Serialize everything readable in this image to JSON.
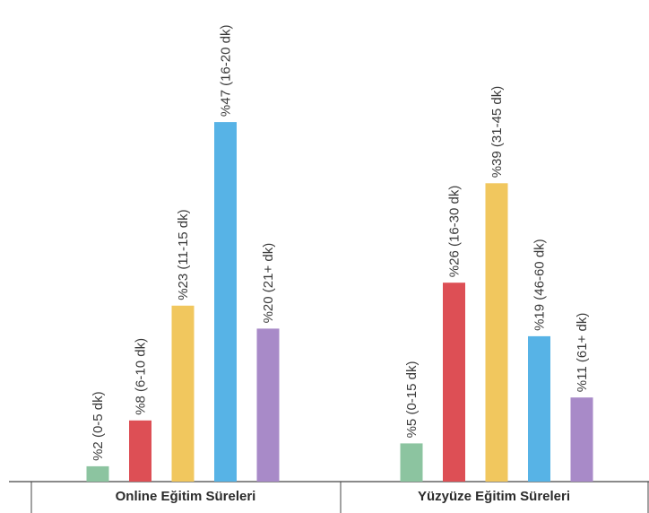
{
  "chart_data": {
    "type": "bar",
    "title": "",
    "xlabel": "",
    "ylabel": "",
    "ylim": [
      0,
      50
    ],
    "groups": [
      {
        "label": "Online Eğitim Süreleri",
        "bars": [
          {
            "label": "%2 (0-5 dk)",
            "value": 2,
            "color": "#8cc4a0"
          },
          {
            "label": "%8 (6-10 dk)",
            "value": 8,
            "color": "#dd4f55"
          },
          {
            "label": "%23 (11-15 dk)",
            "value": 23,
            "color": "#f1c75e"
          },
          {
            "label": "%47 (16-20 dk)",
            "value": 47,
            "color": "#57b3e6"
          },
          {
            "label": "%20 (21+ dk)",
            "value": 20,
            "color": "#a88ac8"
          }
        ]
      },
      {
        "label": "Yüzyüze Eğitim Süreleri",
        "bars": [
          {
            "label": "%5 (0-15 dk)",
            "value": 5,
            "color": "#8cc4a0"
          },
          {
            "label": "%26 (16-30 dk)",
            "value": 26,
            "color": "#dd4f55"
          },
          {
            "label": "%39 (31-45 dk)",
            "value": 39,
            "color": "#f1c75e"
          },
          {
            "label": "%19 (46-60 dk)",
            "value": 19,
            "color": "#57b3e6"
          },
          {
            "label": "%11 (61+ dk)",
            "value": 11,
            "color": "#a88ac8"
          }
        ]
      }
    ]
  }
}
